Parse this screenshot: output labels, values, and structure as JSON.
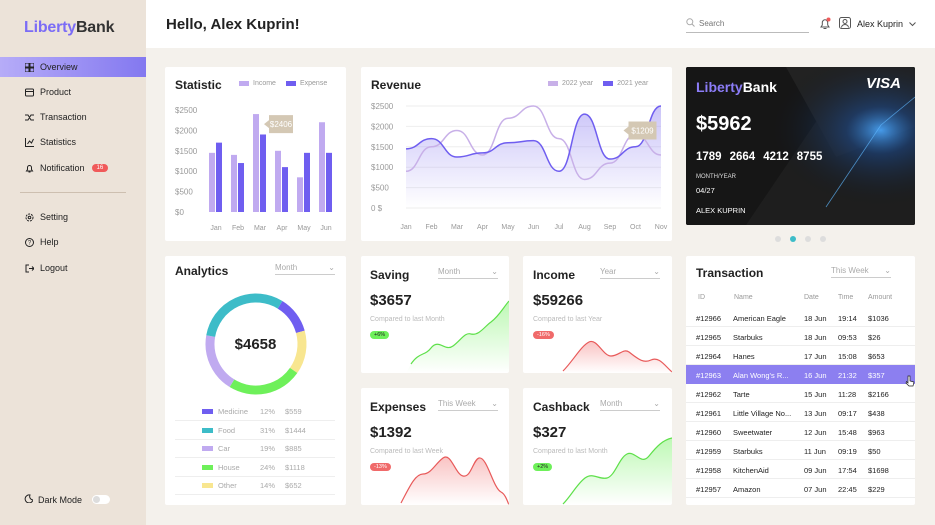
{
  "brand": {
    "part1": "Liberty",
    "part2": "Bank"
  },
  "nav": {
    "overview": "Overview",
    "product": "Product",
    "transaction": "Transaction",
    "statistics": "Statistics",
    "notification": "Notification",
    "notification_badge": "16",
    "setting": "Setting",
    "help": "Help",
    "logout": "Logout",
    "dark_mode": "Dark Mode"
  },
  "header": {
    "greeting": "Hello, Alex Kuprin!",
    "search_placeholder": "Search",
    "user_name": "Alex Kuprin"
  },
  "statistic": {
    "title": "Statistic",
    "chart_data": {
      "type": "bar",
      "categories": [
        "Jan",
        "Feb",
        "Mar",
        "Apr",
        "May",
        "Jun"
      ],
      "series": [
        {
          "name": "Income",
          "values": [
            1450,
            1400,
            2400,
            1500,
            850,
            2200
          ]
        },
        {
          "name": "Expense",
          "values": [
            1700,
            1200,
            1900,
            1100,
            1450,
            1450
          ]
        }
      ],
      "yticks": [
        "$2500",
        "$2000",
        "$1500",
        "$1000",
        "$500",
        "$0"
      ],
      "ylim": [
        0,
        2500
      ],
      "tooltip": "$2406",
      "colors": {
        "Income": "#c0aaf0",
        "Expense": "#6f5ef0"
      }
    }
  },
  "revenue": {
    "title": "Revenue",
    "chart_data": {
      "type": "area",
      "categories": [
        "Jan",
        "Feb",
        "Mar",
        "Apr",
        "May",
        "Jun",
        "Jul",
        "Aug",
        "Sep",
        "Oct",
        "Nov"
      ],
      "series": [
        {
          "name": "2022 year",
          "values": [
            900,
            1500,
            1900,
            1300,
            2200,
            2500,
            1700,
            700,
            1100,
            1800,
            1300
          ]
        },
        {
          "name": "2021 year",
          "values": [
            1450,
            1700,
            1250,
            1350,
            1600,
            1650,
            900,
            2300,
            1200,
            1500,
            2500
          ]
        }
      ],
      "yticks": [
        "$2500",
        "$2000",
        "$1500",
        "$1000",
        "$500",
        "0 $"
      ],
      "ylim": [
        0,
        2500
      ],
      "tooltip": "$1209",
      "colors": {
        "2022 year": "#c8b0e8",
        "2021 year": "#6f5ef0"
      }
    }
  },
  "bank_card": {
    "brand1": "Liberty",
    "brand2": "Bank",
    "network": "VISA",
    "balance": "$5962",
    "number": [
      "1789",
      "2664",
      "4212",
      "8755"
    ],
    "month_label": "MONTH/YEAR",
    "expiry": "04/27",
    "holder": "ALEX KUPRIN"
  },
  "analytics": {
    "title": "Analytics",
    "period": "Month",
    "total": "$4658",
    "chart_data": {
      "type": "pie",
      "items": [
        {
          "name": "Medicine",
          "percent": "12%",
          "amount": "$559",
          "value": 12,
          "color": "#6f5ef0"
        },
        {
          "name": "Food",
          "percent": "31%",
          "amount": "$1444",
          "value": 31,
          "color": "#3dbcc8"
        },
        {
          "name": "Car",
          "percent": "19%",
          "amount": "$885",
          "value": 19,
          "color": "#c0aaf0"
        },
        {
          "name": "House",
          "percent": "24%",
          "amount": "$1118",
          "value": 24,
          "color": "#6ef05a"
        },
        {
          "name": "Other",
          "percent": "14%",
          "amount": "$652",
          "value": 14,
          "color": "#f8e690"
        }
      ]
    }
  },
  "saving": {
    "title": "Saving",
    "period": "Month",
    "value": "$3657",
    "compare": "Compared to last Month",
    "change": "+6%"
  },
  "income": {
    "title": "Income",
    "period": "Year",
    "value": "$59266",
    "compare": "Compared to last Year",
    "change": "-16%"
  },
  "expenses": {
    "title": "Expenses",
    "period": "This Week",
    "value": "$1392",
    "compare": "Compared to last Week",
    "change": "-13%"
  },
  "cashback": {
    "title": "Cashback",
    "period": "Month",
    "value": "$327",
    "compare": "Compared to last Month",
    "change": "+2%"
  },
  "transactions": {
    "title": "Transaction",
    "period": "This Week",
    "columns": [
      "ID",
      "Name",
      "Date",
      "Time",
      "Amount"
    ],
    "rows": [
      {
        "id": "#12966",
        "name": "American Eagle",
        "date": "18 Jun",
        "time": "19:14",
        "amount": "$1036"
      },
      {
        "id": "#12965",
        "name": "Starbuks",
        "date": "18 Jun",
        "time": "09:53",
        "amount": "$26"
      },
      {
        "id": "#12964",
        "name": "Hanes",
        "date": "17 Jun",
        "time": "15:08",
        "amount": "$653"
      },
      {
        "id": "#12963",
        "name": "Alan  Wong's R...",
        "date": "16 Jun",
        "time": "21:32",
        "amount": "$357"
      },
      {
        "id": "#12962",
        "name": "Tarte",
        "date": "15 Jun",
        "time": "11:28",
        "amount": "$2166"
      },
      {
        "id": "#12961",
        "name": "Little Village No...",
        "date": "13 Jun",
        "time": "09:17",
        "amount": "$438"
      },
      {
        "id": "#12960",
        "name": "Sweetwater",
        "date": "12 Jun",
        "time": "15:48",
        "amount": "$963"
      },
      {
        "id": "#12959",
        "name": "Starbuks",
        "date": "11 Jun",
        "time": "09:19",
        "amount": "$50"
      },
      {
        "id": "#12958",
        "name": "KitchenAid",
        "date": "09 Jun",
        "time": "17:54",
        "amount": "$1698"
      },
      {
        "id": "#12957",
        "name": "Amazon",
        "date": "07 Jun",
        "time": "22:45",
        "amount": "$229"
      }
    ]
  }
}
